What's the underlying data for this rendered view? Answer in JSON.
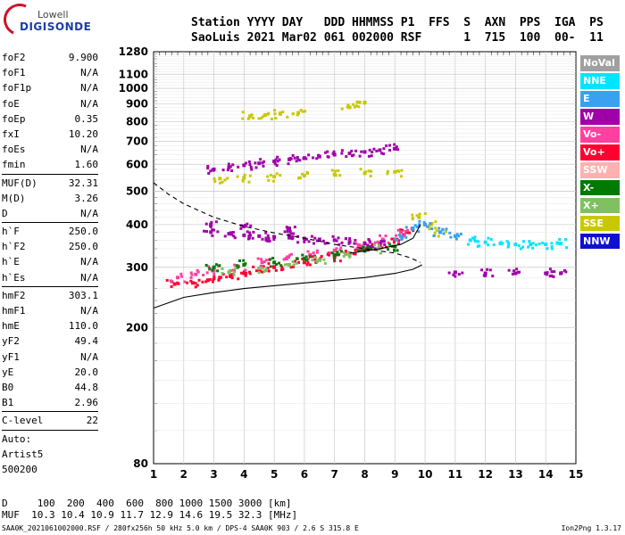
{
  "logo": {
    "line1": "Lowell",
    "line2": "DIGISONDE"
  },
  "header": {
    "line1": "Station YYYY DAY   DDD HHMMSS P1  FFS  S  AXN  PPS  IGA  PS",
    "line2": "SaoLuis 2021 Mar02 061 002000 RSF      1  715  100  00-  11"
  },
  "params": [
    [
      [
        "foF2",
        "9.900"
      ],
      [
        "foF1",
        "N/A"
      ],
      [
        "foF1p",
        "N/A"
      ],
      [
        "foE",
        "N/A"
      ],
      [
        "foEp",
        "0.35"
      ],
      [
        "fxI",
        "10.20"
      ],
      [
        "foEs",
        "N/A"
      ],
      [
        "fmin",
        "1.60"
      ]
    ],
    [
      [
        "MUF(D)",
        "32.31"
      ],
      [
        "M(D)",
        "3.26"
      ],
      [
        "D",
        "N/A"
      ]
    ],
    [
      [
        "h`F",
        "250.0"
      ],
      [
        "h`F2",
        "250.0"
      ],
      [
        "h`E",
        "N/A"
      ],
      [
        "h`Es",
        "N/A"
      ]
    ],
    [
      [
        "hmF2",
        "303.1"
      ],
      [
        "hmF1",
        "N/A"
      ],
      [
        "hmE",
        "110.0"
      ],
      [
        "yF2",
        "49.4"
      ],
      [
        "yF1",
        "N/A"
      ],
      [
        "yE",
        "20.0"
      ],
      [
        "B0",
        "44.8"
      ],
      [
        "B1",
        "2.96"
      ]
    ],
    [
      [
        "C-level",
        "22"
      ]
    ]
  ],
  "auto": [
    "Auto:",
    "Artist5",
    "500200"
  ],
  "bottom": {
    "line1": "D     100  200  400  600  800 1000 1500 3000 [km]",
    "line2": "MUF  10.3 10.4 10.9 11.7 12.9 14.6 19.5 32.3 [MHz]"
  },
  "footer": "SAA0K_2021061002000.RSF / 280fx256h 50 kHz 5.0 km / DPS-4 SAA0K 903 / 2.6 S 315.8 E",
  "footer_right": "Ion2Png 1.3.17",
  "legend": [
    {
      "label": "NoVal",
      "color": "#a0a0a0"
    },
    {
      "label": "NNE",
      "color": "#00e5ff"
    },
    {
      "label": "E",
      "color": "#3aa0f0"
    },
    {
      "label": "W",
      "color": "#a000a8"
    },
    {
      "label": "Vo-",
      "color": "#ff40a0"
    },
    {
      "label": "Vo+",
      "color": "#ff0030"
    },
    {
      "label": "SSW",
      "color": "#ffb0b0"
    },
    {
      "label": "X-",
      "color": "#007a00"
    },
    {
      "label": "X+",
      "color": "#80c060"
    },
    {
      "label": "SSE",
      "color": "#c8c800"
    },
    {
      "label": "NNW",
      "color": "#1010d0"
    }
  ],
  "chart_data": {
    "type": "scatter",
    "title": "",
    "xlabel": "",
    "ylabel": "",
    "xlim": [
      1,
      15
    ],
    "ylim": [
      80,
      1280
    ],
    "yscale": "log",
    "x_ticks": [
      1,
      2,
      3,
      4,
      5,
      6,
      7,
      8,
      9,
      10,
      11,
      12,
      13,
      14,
      15
    ],
    "y_ticks": [
      80,
      200,
      300,
      400,
      500,
      600,
      700,
      800,
      900,
      1000,
      1100,
      1280
    ],
    "grid": true,
    "legend_position": "right",
    "traces": [
      {
        "color": "#ff0030",
        "points": [
          [
            1.7,
            268
          ],
          [
            2.3,
            270
          ],
          [
            2.8,
            275
          ],
          [
            3.2,
            280
          ],
          [
            3.6,
            285
          ],
          [
            4.0,
            288
          ],
          [
            4.5,
            295
          ],
          [
            5.0,
            300
          ],
          [
            5.5,
            305
          ],
          [
            6.0,
            310
          ],
          [
            6.5,
            315
          ],
          [
            7.0,
            322
          ],
          [
            7.5,
            330
          ],
          [
            8.0,
            340
          ],
          [
            8.5,
            350
          ],
          [
            9.0,
            362
          ],
          [
            9.4,
            380
          ]
        ]
      },
      {
        "color": "#ff40a0",
        "points": [
          [
            1.8,
            280
          ],
          [
            2.4,
            286
          ],
          [
            3.0,
            294
          ],
          [
            3.8,
            302
          ],
          [
            4.6,
            310
          ],
          [
            5.4,
            318
          ],
          [
            6.2,
            326
          ],
          [
            7.0,
            336
          ],
          [
            7.8,
            348
          ],
          [
            8.6,
            362
          ],
          [
            9.2,
            380
          ]
        ]
      },
      {
        "color": "#a000a8",
        "points": [
          [
            2.9,
            380
          ],
          [
            3.5,
            376
          ],
          [
            4.0,
            372
          ],
          [
            4.5,
            370
          ],
          [
            5.0,
            368
          ],
          [
            5.5,
            366
          ],
          [
            6.0,
            364
          ],
          [
            6.5,
            362
          ],
          [
            7.0,
            360
          ],
          [
            7.5,
            356
          ],
          [
            8.0,
            352
          ],
          [
            8.5,
            350
          ],
          [
            2.9,
            400
          ],
          [
            4.0,
            395
          ],
          [
            5.5,
            390
          ]
        ]
      },
      {
        "color": "#a000a8",
        "points": [
          [
            3.0,
            580
          ],
          [
            3.5,
            588
          ],
          [
            4.0,
            596
          ],
          [
            4.5,
            604
          ],
          [
            5.0,
            612
          ],
          [
            5.5,
            620
          ],
          [
            6.0,
            626
          ],
          [
            6.5,
            632
          ],
          [
            7.0,
            640
          ],
          [
            7.5,
            646
          ],
          [
            8.0,
            652
          ],
          [
            8.5,
            660
          ],
          [
            9.0,
            666
          ]
        ]
      },
      {
        "color": "#c8c800",
        "points": [
          [
            3.2,
            545
          ],
          [
            4.0,
            548
          ],
          [
            5.0,
            552
          ],
          [
            6.0,
            556
          ],
          [
            7.0,
            560
          ],
          [
            8.0,
            565
          ],
          [
            9.0,
            570
          ],
          [
            9.8,
            420
          ],
          [
            10.2,
            400
          ],
          [
            10.5,
            380
          ]
        ]
      },
      {
        "color": "#c8c800",
        "points": [
          [
            4.2,
            830
          ],
          [
            4.7,
            836
          ],
          [
            5.2,
            842
          ],
          [
            5.8,
            848
          ],
          [
            7.5,
            880
          ],
          [
            8.0,
            910
          ]
        ]
      },
      {
        "color": "#00e5ff",
        "points": [
          [
            11.5,
            360
          ],
          [
            12.0,
            355
          ],
          [
            12.5,
            352
          ],
          [
            13.0,
            350
          ],
          [
            13.5,
            350
          ],
          [
            14.0,
            350
          ],
          [
            14.5,
            352
          ]
        ]
      },
      {
        "color": "#3aa0f0",
        "points": [
          [
            9.2,
            370
          ],
          [
            9.6,
            390
          ],
          [
            10.0,
            400
          ],
          [
            10.5,
            380
          ],
          [
            11.0,
            370
          ]
        ]
      },
      {
        "color": "#007a00",
        "points": [
          [
            3.0,
            300
          ],
          [
            4.0,
            305
          ],
          [
            5.0,
            310
          ],
          [
            6.0,
            318
          ],
          [
            7.0,
            326
          ],
          [
            8.0,
            335
          ],
          [
            9.0,
            345
          ]
        ]
      },
      {
        "color": "#80c060",
        "points": [
          [
            3.5,
            290
          ],
          [
            4.5,
            298
          ],
          [
            5.5,
            305
          ],
          [
            6.5,
            315
          ],
          [
            7.5,
            325
          ],
          [
            8.5,
            340
          ]
        ]
      },
      {
        "color": "#a000a8",
        "points": [
          [
            11.0,
            290
          ],
          [
            12.0,
            288
          ],
          [
            13.0,
            288
          ],
          [
            14.0,
            288
          ],
          [
            14.5,
            288
          ]
        ]
      }
    ],
    "lines": [
      {
        "style": "solid",
        "points": [
          [
            1.0,
            228
          ],
          [
            2.0,
            245
          ],
          [
            3.0,
            253
          ],
          [
            4.0,
            260
          ],
          [
            5.0,
            265
          ],
          [
            6.0,
            270
          ],
          [
            7.0,
            275
          ],
          [
            8.0,
            280
          ],
          [
            9.0,
            288
          ],
          [
            9.6,
            296
          ],
          [
            9.9,
            305
          ]
        ]
      },
      {
        "style": "dashed",
        "points": [
          [
            1.0,
            530
          ],
          [
            1.5,
            490
          ],
          [
            2.0,
            460
          ],
          [
            3.0,
            420
          ],
          [
            4.0,
            395
          ],
          [
            5.0,
            378
          ],
          [
            6.0,
            365
          ],
          [
            7.0,
            350
          ],
          [
            8.0,
            340
          ],
          [
            9.0,
            330
          ],
          [
            9.5,
            320
          ],
          [
            9.85,
            310
          ]
        ]
      },
      {
        "style": "solid",
        "points": [
          [
            7.5,
            330
          ],
          [
            8.5,
            340
          ],
          [
            9.2,
            350
          ],
          [
            9.6,
            365
          ],
          [
            9.85,
            400
          ]
        ]
      }
    ]
  }
}
